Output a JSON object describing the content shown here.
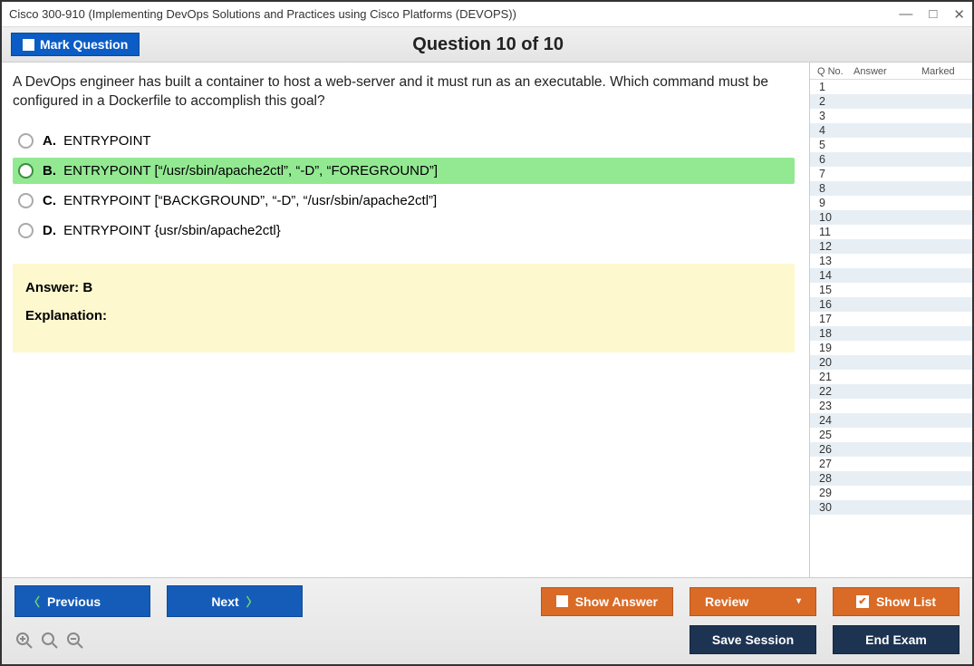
{
  "window": {
    "title": "Cisco 300-910 (Implementing DevOps Solutions and Practices using Cisco Platforms (DEVOPS))"
  },
  "header": {
    "mark_label": "Mark Question",
    "question_title": "Question 10 of 10"
  },
  "question": {
    "text": "A DevOps engineer has built a container to host a web-server and it must run as an executable. Which command must be configured in a Dockerfile to accomplish this goal?",
    "options": [
      {
        "letter": "A.",
        "text": "ENTRYPOINT",
        "correct": false
      },
      {
        "letter": "B.",
        "text": "ENTRYPOINT [“/usr/sbin/apache2ctl”, “-D”, “FOREGROUND”]",
        "correct": true
      },
      {
        "letter": "C.",
        "text": "ENTRYPOINT [“BACKGROUND”, “-D”, “/usr/sbin/apache2ctl”]",
        "correct": false
      },
      {
        "letter": "D.",
        "text": "ENTRYPOINT {usr/sbin/apache2ctl}",
        "correct": false
      }
    ],
    "answer_label": "Answer: B",
    "explanation_label": "Explanation:"
  },
  "sidepanel": {
    "headers": {
      "qno": "Q No.",
      "answer": "Answer",
      "marked": "Marked"
    },
    "count": 30
  },
  "footer": {
    "previous": "Previous",
    "next": "Next",
    "show_answer": "Show Answer",
    "review": "Review",
    "show_list": "Show List",
    "save_session": "Save Session",
    "end_exam": "End Exam"
  },
  "colors": {
    "blue": "#155cb8",
    "orange": "#d96b27",
    "navy": "#1d3352",
    "correct_bg": "#92e992",
    "answer_bg": "#fdf8ce",
    "alt_row": "#e7eff5"
  }
}
